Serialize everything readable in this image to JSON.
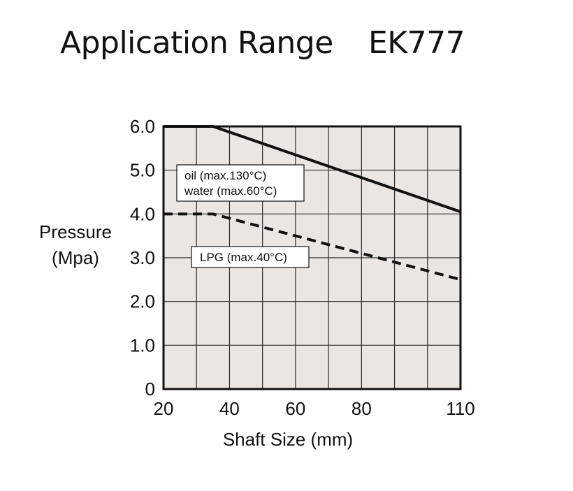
{
  "header": {
    "title": "Application Range",
    "model": "EK777"
  },
  "colors": {
    "plot_bg": "#ebe6e1",
    "grid": "#2a2a2a",
    "line": "#111111"
  },
  "chart_data": {
    "type": "line",
    "title": "Application Range",
    "xlabel": "Shaft Size (mm)",
    "ylabel_lines": [
      "Pressure",
      "(Mpa)"
    ],
    "xlim": [
      20,
      110
    ],
    "ylim": [
      0,
      6
    ],
    "x_ticks": [
      {
        "value": 20,
        "label": "20"
      },
      {
        "value": 40,
        "label": "40"
      },
      {
        "value": 60,
        "label": "60"
      },
      {
        "value": 80,
        "label": "80"
      },
      {
        "value": 110,
        "label": "110"
      }
    ],
    "y_ticks": [
      {
        "value": 0,
        "label": "0"
      },
      {
        "value": 1,
        "label": "1.0"
      },
      {
        "value": 2,
        "label": "2.0"
      },
      {
        "value": 3,
        "label": "3.0"
      },
      {
        "value": 4,
        "label": "4.0"
      },
      {
        "value": 5,
        "label": "5.0"
      },
      {
        "value": 6,
        "label": "6.0"
      }
    ],
    "grid": true,
    "x_grid_step": 10,
    "y_grid_step": 1,
    "series": [
      {
        "name": "oil (max.130°C) / water (max.60°C)",
        "label_lines": [
          "oil (max.130°C)",
          "water (max.60°C)"
        ],
        "style": "solid",
        "x": [
          20,
          35,
          110
        ],
        "y": [
          6.0,
          6.0,
          4.05
        ]
      },
      {
        "name": "LPG (max.40°C)",
        "label_lines": [
          "LPG (max.40°C)"
        ],
        "style": "dashed",
        "x": [
          20,
          35,
          110
        ],
        "y": [
          4.0,
          4.0,
          2.5
        ]
      }
    ]
  }
}
